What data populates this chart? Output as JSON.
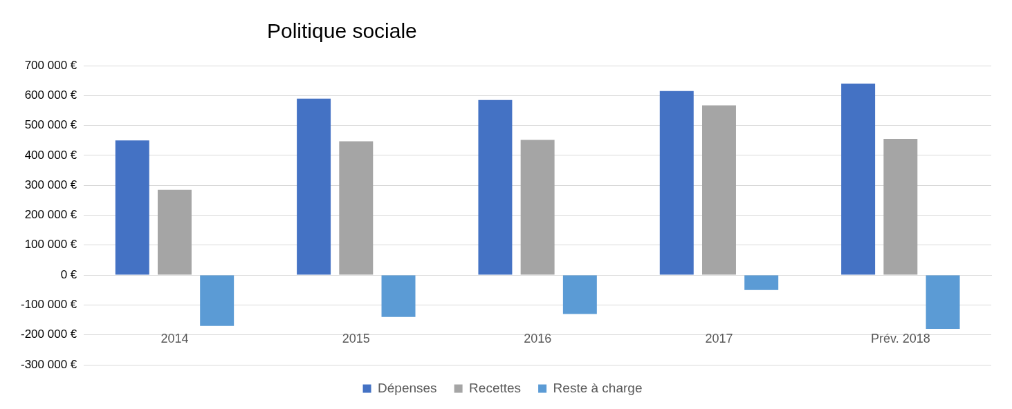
{
  "chart_data": {
    "type": "bar",
    "title": "Politique sociale",
    "categories": [
      "2014",
      "2015",
      "2016",
      "2017",
      "Prév. 2018"
    ],
    "series": [
      {
        "name": "Dépenses",
        "color": "#4472c4",
        "values": [
          450000,
          590000,
          585000,
          615000,
          640000
        ]
      },
      {
        "name": "Recettes",
        "color": "#a5a5a5",
        "values": [
          285000,
          447000,
          452000,
          567000,
          455000
        ]
      },
      {
        "name": "Reste à charge",
        "color": "#5b9bd5",
        "values": [
          -170000,
          -140000,
          -130000,
          -50000,
          -180000
        ]
      }
    ],
    "ylim": [
      -300000,
      700000
    ],
    "yticks": [
      {
        "value": -300000,
        "label": "-300 000 €"
      },
      {
        "value": -200000,
        "label": "-200 000 €"
      },
      {
        "value": -100000,
        "label": "-100 000 €"
      },
      {
        "value": 0,
        "label": "0 €"
      },
      {
        "value": 100000,
        "label": "100 000 €"
      },
      {
        "value": 200000,
        "label": "200 000 €"
      },
      {
        "value": 300000,
        "label": "300 000 €"
      },
      {
        "value": 400000,
        "label": "400 000 €"
      },
      {
        "value": 500000,
        "label": "500 000 €"
      },
      {
        "value": 600000,
        "label": "600 000 €"
      },
      {
        "value": 700000,
        "label": "700 000 €"
      }
    ],
    "grid": "y",
    "legend": "bottom"
  }
}
